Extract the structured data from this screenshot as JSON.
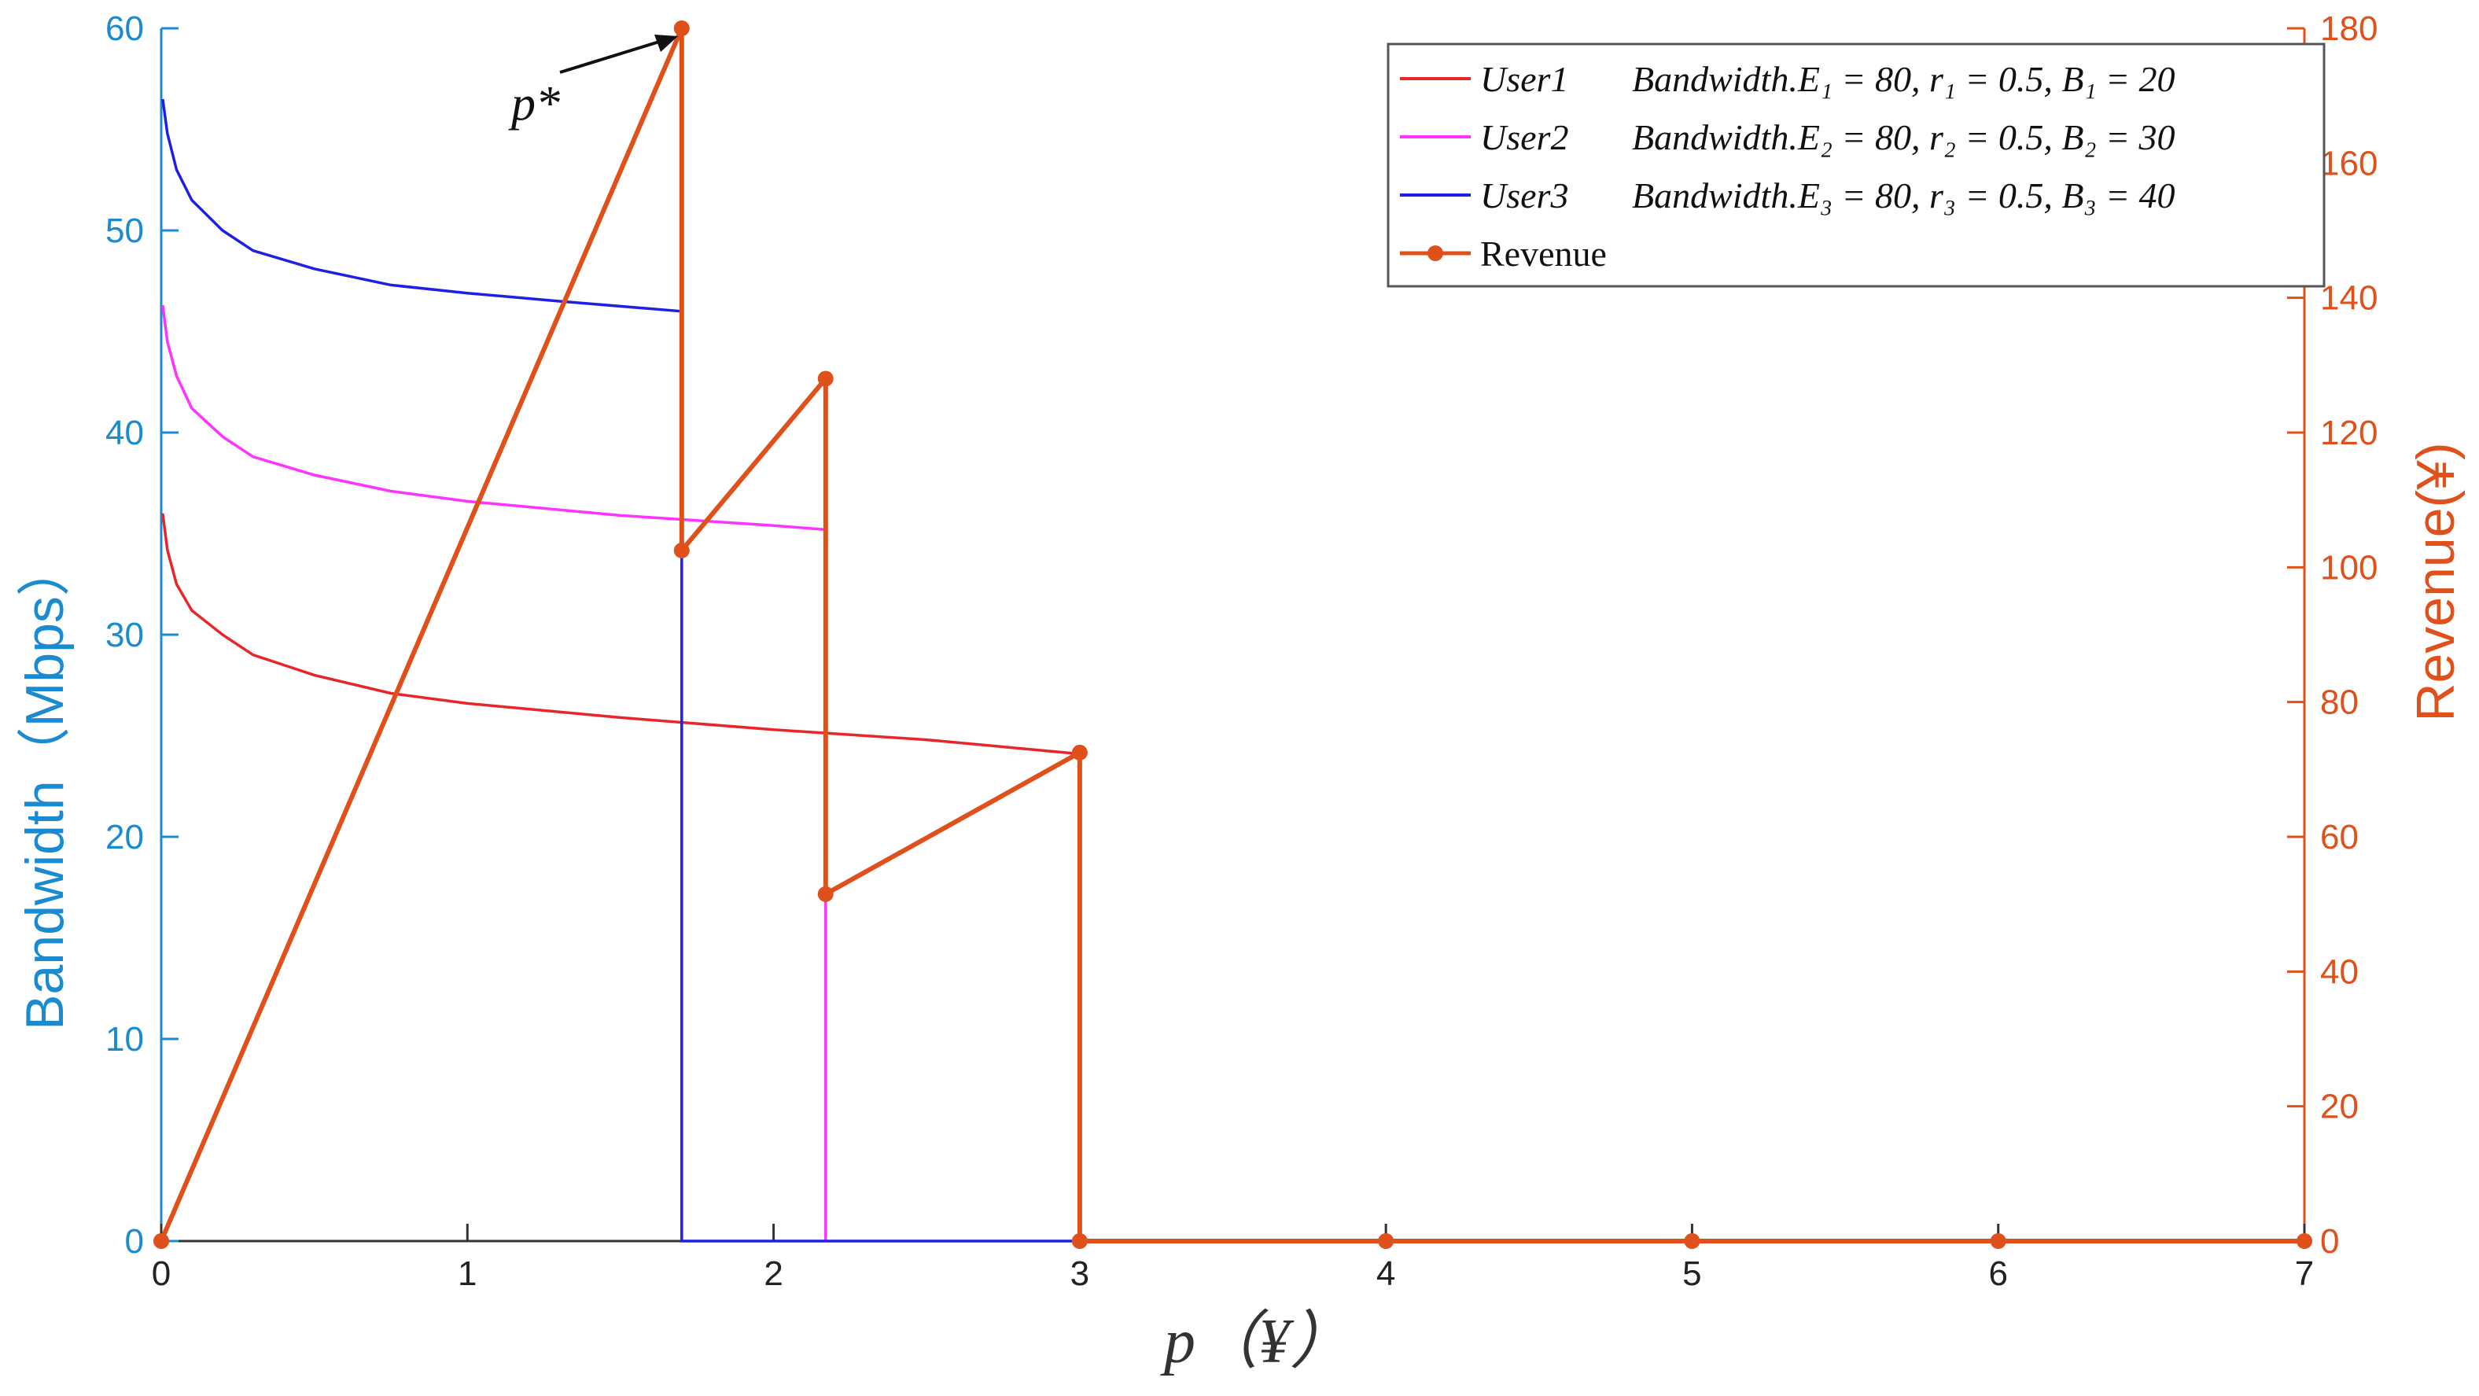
{
  "chart_data": {
    "type": "line",
    "xlabel": "p（¥）",
    "ylabel_left": "Bandwidth（Mbps）",
    "ylabel_right": "Revenue(¥)",
    "xlim": [
      0,
      7
    ],
    "ylim_left": [
      0,
      60
    ],
    "ylim_right": [
      0,
      180
    ],
    "x_ticks": [
      "0",
      "1",
      "2",
      "3",
      "4",
      "5",
      "6",
      "7"
    ],
    "y_left_ticks": [
      "0",
      "10",
      "20",
      "30",
      "40",
      "50",
      "60"
    ],
    "y_right_ticks": [
      "0",
      "20",
      "40",
      "60",
      "80",
      "100",
      "120",
      "140",
      "160",
      "180"
    ],
    "grid": false,
    "legend_position": "top-right",
    "annotation": "p*",
    "colors": {
      "left_axis": "#1a8bd0",
      "right_axis": "#e0501b",
      "user1": "#e8262a",
      "user2": "#ff33ff",
      "user3": "#1f1fe6",
      "revenue": "#e0501b"
    },
    "series": [
      {
        "name": "User1   Bandwidth.E₁ = 80, r₁ = 0.5, B₁ = 20",
        "axis": "left",
        "points": [
          [
            0.005,
            36
          ],
          [
            0.02,
            34.2
          ],
          [
            0.05,
            32.5
          ],
          [
            0.1,
            31.2
          ],
          [
            0.2,
            30
          ],
          [
            0.3,
            29
          ],
          [
            0.5,
            28
          ],
          [
            0.75,
            27.1
          ],
          [
            1.0,
            26.6
          ],
          [
            1.5,
            25.9
          ],
          [
            2.0,
            25.3
          ],
          [
            2.5,
            24.8
          ],
          [
            3.0,
            24.1
          ],
          [
            3.0,
            0
          ]
        ]
      },
      {
        "name": "User2   Bandwidth.E₂ = 80, r₂ = 0.5, B₂ = 30",
        "axis": "left",
        "points": [
          [
            0.005,
            46.3
          ],
          [
            0.02,
            44.5
          ],
          [
            0.05,
            42.8
          ],
          [
            0.1,
            41.2
          ],
          [
            0.2,
            39.8
          ],
          [
            0.3,
            38.8
          ],
          [
            0.5,
            37.9
          ],
          [
            0.75,
            37.1
          ],
          [
            1.0,
            36.6
          ],
          [
            1.5,
            35.9
          ],
          [
            2.0,
            35.4
          ],
          [
            2.17,
            35.2
          ],
          [
            2.17,
            0
          ]
        ]
      },
      {
        "name": "User3   Bandwidth.E₃ = 80, r₃ = 0.5, B₃ = 40",
        "axis": "left",
        "points": [
          [
            0.005,
            56.5
          ],
          [
            0.02,
            54.8
          ],
          [
            0.05,
            53
          ],
          [
            0.1,
            51.5
          ],
          [
            0.2,
            50
          ],
          [
            0.3,
            49
          ],
          [
            0.5,
            48.1
          ],
          [
            0.75,
            47.3
          ],
          [
            1.0,
            46.9
          ],
          [
            1.3,
            46.5
          ],
          [
            1.7,
            46
          ],
          [
            1.7,
            0
          ],
          [
            3.0,
            0
          ]
        ]
      },
      {
        "name": "Revenue",
        "axis": "right",
        "markers": true,
        "points": [
          [
            0,
            0
          ],
          [
            1.7,
            180
          ],
          [
            1.7,
            102.5
          ],
          [
            2.17,
            128
          ],
          [
            2.17,
            51.5
          ],
          [
            3.0,
            72.5
          ],
          [
            3.0,
            0
          ],
          [
            4,
            0
          ],
          [
            5,
            0
          ],
          [
            6,
            0
          ],
          [
            7,
            0
          ]
        ],
        "marker_points": [
          [
            0,
            0
          ],
          [
            1.7,
            180
          ],
          [
            1.7,
            102.5
          ],
          [
            2.17,
            128
          ],
          [
            2.17,
            51.5
          ],
          [
            3.0,
            72.5
          ],
          [
            3.0,
            0
          ],
          [
            4,
            0
          ],
          [
            5,
            0
          ],
          [
            6,
            0
          ],
          [
            7,
            0
          ]
        ]
      }
    ],
    "legend": [
      {
        "user": "User1",
        "text": "Bandwidth.E₁ = 80, r₁ = 0.5, B₁ = 20"
      },
      {
        "user": "User2",
        "text": "Bandwidth.E₂ = 80, r₂ = 0.5, B₂ = 30"
      },
      {
        "user": "User3",
        "text": "Bandwidth.E₃ = 80, r₃ = 0.5, B₃ = 40"
      },
      {
        "user": "Revenue",
        "text": ""
      }
    ]
  }
}
